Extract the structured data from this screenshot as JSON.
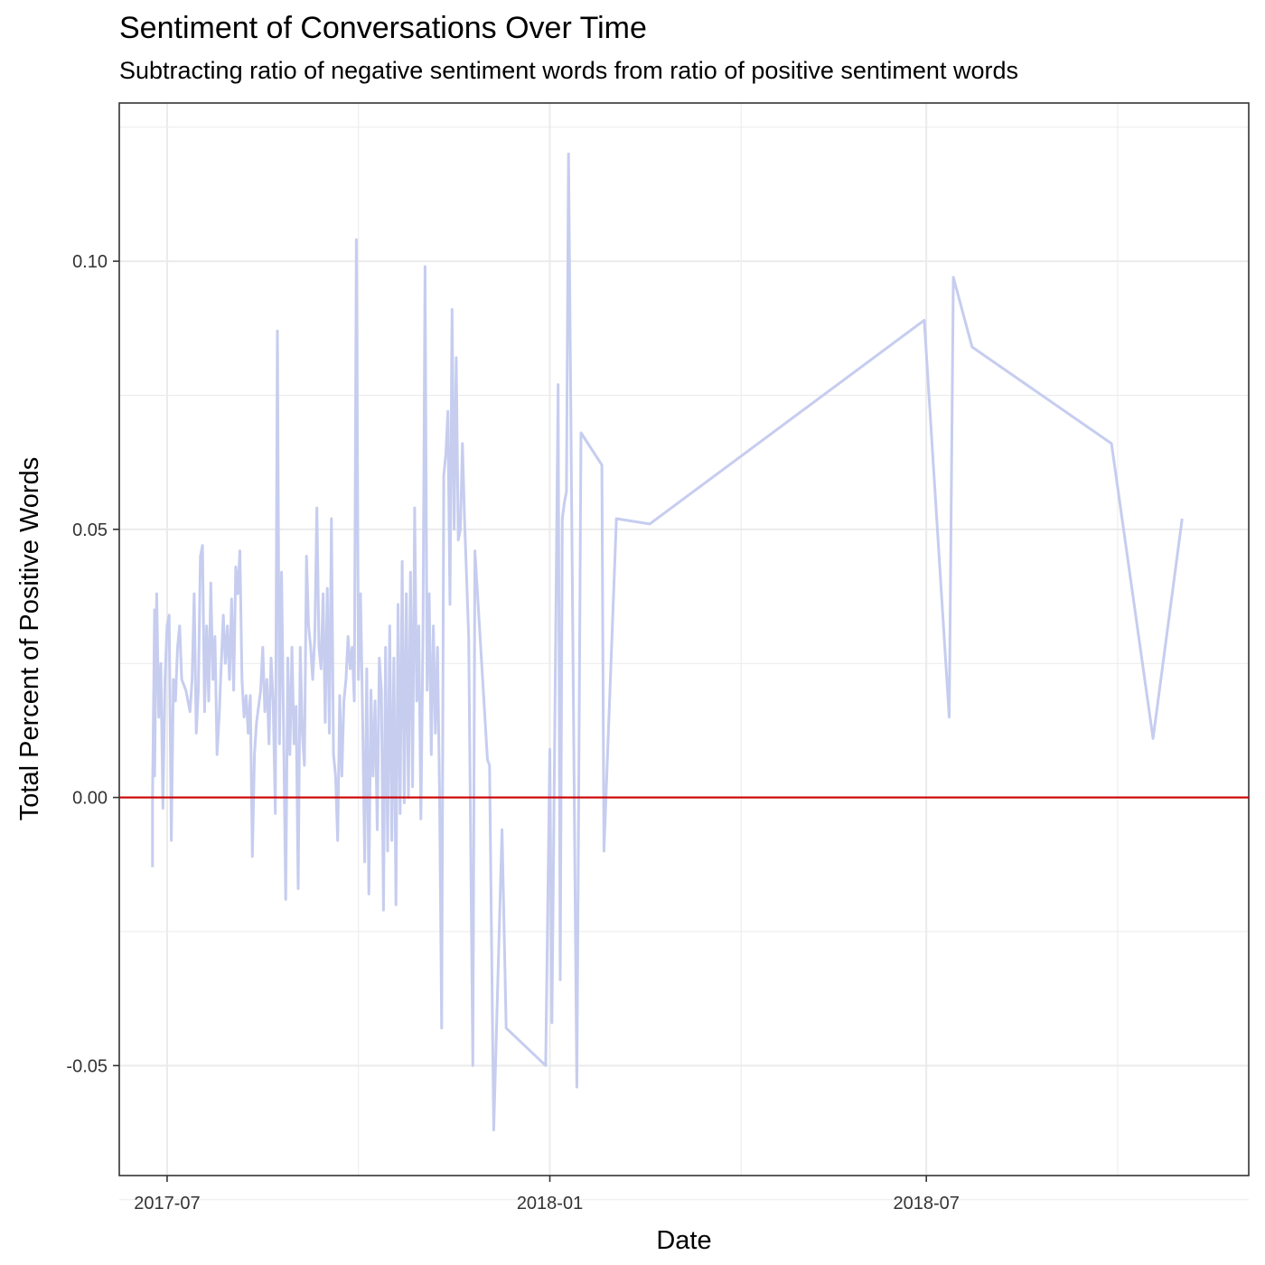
{
  "chart_data": {
    "type": "line",
    "title": "Sentiment of Conversations Over Time",
    "subtitle": "Subtracting ratio of negative sentiment words from ratio of positive sentiment words",
    "xlabel": "Date",
    "ylabel": "Total Percent of Positive Words",
    "x_ticks": [
      "2017-07",
      "2018-01",
      "2018-07"
    ],
    "y_ticks": [
      "-0.05",
      "0.00",
      "0.05",
      "0.10"
    ],
    "xlim": [
      "2017-06-08",
      "2018-12-03"
    ],
    "ylim": [
      -0.0705,
      0.1295
    ],
    "grid": true,
    "reference_line": {
      "y": 0,
      "color": "#cc0000"
    },
    "series": [
      {
        "color": "#c6cdef",
        "points": [
          [
            "2017-06-24",
            -0.013
          ],
          [
            "2017-06-24",
            0.0
          ],
          [
            "2017-06-25",
            0.035
          ],
          [
            "2017-06-25",
            0.004
          ],
          [
            "2017-06-26",
            0.038
          ],
          [
            "2017-06-27",
            0.015
          ],
          [
            "2017-06-28",
            0.025
          ],
          [
            "2017-06-29",
            -0.002
          ],
          [
            "2017-06-30",
            0.022
          ],
          [
            "2017-07-01",
            0.032
          ],
          [
            "2017-07-02",
            0.034
          ],
          [
            "2017-07-03",
            -0.008
          ],
          [
            "2017-07-04",
            0.022
          ],
          [
            "2017-07-05",
            0.018
          ],
          [
            "2017-07-06",
            0.028
          ],
          [
            "2017-07-07",
            0.032
          ],
          [
            "2017-07-08",
            0.022
          ],
          [
            "2017-07-10",
            0.02
          ],
          [
            "2017-07-12",
            0.016
          ],
          [
            "2017-07-13",
            0.022
          ],
          [
            "2017-07-14",
            0.038
          ],
          [
            "2017-07-15",
            0.012
          ],
          [
            "2017-07-16",
            0.02
          ],
          [
            "2017-07-17",
            0.045
          ],
          [
            "2017-07-18",
            0.047
          ],
          [
            "2017-07-19",
            0.016
          ],
          [
            "2017-07-20",
            0.032
          ],
          [
            "2017-07-21",
            0.018
          ],
          [
            "2017-07-22",
            0.04
          ],
          [
            "2017-07-23",
            0.022
          ],
          [
            "2017-07-24",
            0.03
          ],
          [
            "2017-07-25",
            0.008
          ],
          [
            "2017-07-26",
            0.015
          ],
          [
            "2017-07-28",
            0.034
          ],
          [
            "2017-07-29",
            0.025
          ],
          [
            "2017-07-30",
            0.032
          ],
          [
            "2017-07-31",
            0.022
          ],
          [
            "2017-08-01",
            0.037
          ],
          [
            "2017-08-02",
            0.02
          ],
          [
            "2017-08-03",
            0.043
          ],
          [
            "2017-08-04",
            0.038
          ],
          [
            "2017-08-05",
            0.046
          ],
          [
            "2017-08-06",
            0.022
          ],
          [
            "2017-08-07",
            0.015
          ],
          [
            "2017-08-08",
            0.019
          ],
          [
            "2017-08-09",
            0.012
          ],
          [
            "2017-08-10",
            0.019
          ],
          [
            "2017-08-11",
            -0.011
          ],
          [
            "2017-08-12",
            0.008
          ],
          [
            "2017-08-13",
            0.014
          ],
          [
            "2017-08-15",
            0.02
          ],
          [
            "2017-08-16",
            0.028
          ],
          [
            "2017-08-17",
            0.016
          ],
          [
            "2017-08-18",
            0.022
          ],
          [
            "2017-08-19",
            0.01
          ],
          [
            "2017-08-20",
            0.026
          ],
          [
            "2017-08-21",
            0.018
          ],
          [
            "2017-08-22",
            -0.003
          ],
          [
            "2017-08-23",
            0.087
          ],
          [
            "2017-08-24",
            0.01
          ],
          [
            "2017-08-25",
            0.042
          ],
          [
            "2017-08-26",
            0.012
          ],
          [
            "2017-08-27",
            -0.019
          ],
          [
            "2017-08-28",
            0.026
          ],
          [
            "2017-08-29",
            0.008
          ],
          [
            "2017-08-30",
            0.028
          ],
          [
            "2017-08-31",
            0.01
          ],
          [
            "2017-09-01",
            0.017
          ],
          [
            "2017-09-02",
            -0.017
          ],
          [
            "2017-09-03",
            0.028
          ],
          [
            "2017-09-04",
            0.012
          ],
          [
            "2017-09-05",
            0.006
          ],
          [
            "2017-09-06",
            0.045
          ],
          [
            "2017-09-07",
            0.032
          ],
          [
            "2017-09-08",
            0.028
          ],
          [
            "2017-09-09",
            0.022
          ],
          [
            "2017-09-10",
            0.03
          ],
          [
            "2017-09-11",
            0.054
          ],
          [
            "2017-09-12",
            0.028
          ],
          [
            "2017-09-13",
            0.024
          ],
          [
            "2017-09-14",
            0.038
          ],
          [
            "2017-09-15",
            0.014
          ],
          [
            "2017-09-16",
            0.039
          ],
          [
            "2017-09-17",
            0.012
          ],
          [
            "2017-09-18",
            0.052
          ],
          [
            "2017-09-19",
            0.008
          ],
          [
            "2017-09-20",
            0.004
          ],
          [
            "2017-09-21",
            -0.008
          ],
          [
            "2017-09-22",
            0.019
          ],
          [
            "2017-09-23",
            0.004
          ],
          [
            "2017-09-24",
            0.018
          ],
          [
            "2017-09-25",
            0.022
          ],
          [
            "2017-09-26",
            0.03
          ],
          [
            "2017-09-27",
            0.024
          ],
          [
            "2017-09-28",
            0.028
          ],
          [
            "2017-09-29",
            0.018
          ],
          [
            "2017-09-30",
            0.104
          ],
          [
            "2017-10-01",
            0.022
          ],
          [
            "2017-10-02",
            0.038
          ],
          [
            "2017-10-03",
            0.015
          ],
          [
            "2017-10-04",
            -0.012
          ],
          [
            "2017-10-05",
            0.024
          ],
          [
            "2017-10-06",
            -0.018
          ],
          [
            "2017-10-07",
            0.02
          ],
          [
            "2017-10-08",
            0.004
          ],
          [
            "2017-10-09",
            0.018
          ],
          [
            "2017-10-10",
            -0.006
          ],
          [
            "2017-10-11",
            0.026
          ],
          [
            "2017-10-12",
            0.02
          ],
          [
            "2017-10-13",
            -0.021
          ],
          [
            "2017-10-14",
            0.028
          ],
          [
            "2017-10-15",
            -0.01
          ],
          [
            "2017-10-16",
            0.032
          ],
          [
            "2017-10-17",
            -0.008
          ],
          [
            "2017-10-18",
            0.026
          ],
          [
            "2017-10-19",
            -0.02
          ],
          [
            "2017-10-20",
            0.036
          ],
          [
            "2017-10-21",
            -0.003
          ],
          [
            "2017-10-22",
            0.044
          ],
          [
            "2017-10-23",
            -0.001
          ],
          [
            "2017-10-24",
            0.038
          ],
          [
            "2017-10-25",
            0.0
          ],
          [
            "2017-10-26",
            0.042
          ],
          [
            "2017-10-27",
            0.002
          ],
          [
            "2017-10-28",
            0.054
          ],
          [
            "2017-10-29",
            0.018
          ],
          [
            "2017-10-30",
            0.032
          ],
          [
            "2017-10-31",
            -0.004
          ],
          [
            "2017-11-01",
            0.03
          ],
          [
            "2017-11-02",
            0.099
          ],
          [
            "2017-11-03",
            0.02
          ],
          [
            "2017-11-04",
            0.038
          ],
          [
            "2017-11-05",
            0.008
          ],
          [
            "2017-11-06",
            0.032
          ],
          [
            "2017-11-07",
            0.012
          ],
          [
            "2017-11-08",
            0.028
          ],
          [
            "2017-11-09",
            0.0
          ],
          [
            "2017-11-10",
            -0.043
          ],
          [
            "2017-11-11",
            0.06
          ],
          [
            "2017-11-12",
            0.064
          ],
          [
            "2017-11-13",
            0.072
          ],
          [
            "2017-11-14",
            0.036
          ],
          [
            "2017-11-15",
            0.091
          ],
          [
            "2017-11-16",
            0.05
          ],
          [
            "2017-11-17",
            0.082
          ],
          [
            "2017-11-18",
            0.048
          ],
          [
            "2017-11-19",
            0.05
          ],
          [
            "2017-11-20",
            0.066
          ],
          [
            "2017-11-21",
            0.052
          ],
          [
            "2017-11-23",
            0.03
          ],
          [
            "2017-11-25",
            -0.05
          ],
          [
            "2017-11-26",
            0.046
          ],
          [
            "2017-12-02",
            0.007
          ],
          [
            "2017-12-03",
            0.006
          ],
          [
            "2017-12-05",
            -0.062
          ],
          [
            "2017-12-09",
            -0.006
          ],
          [
            "2017-12-11",
            -0.043
          ],
          [
            "2017-12-30",
            -0.05
          ],
          [
            "2018-01-01",
            0.009
          ],
          [
            "2018-01-02",
            -0.042
          ],
          [
            "2018-01-05",
            0.077
          ],
          [
            "2018-01-06",
            -0.034
          ],
          [
            "2018-01-07",
            0.052
          ],
          [
            "2018-01-08",
            0.055
          ],
          [
            "2018-01-09",
            0.057
          ],
          [
            "2018-01-10",
            0.12
          ],
          [
            "2018-01-14",
            -0.054
          ],
          [
            "2018-01-16",
            0.068
          ],
          [
            "2018-01-26",
            0.062
          ],
          [
            "2018-01-27",
            -0.01
          ],
          [
            "2018-02-02",
            0.052
          ],
          [
            "2018-02-18",
            0.051
          ],
          [
            "2018-06-30",
            0.089
          ],
          [
            "2018-07-12",
            0.015
          ],
          [
            "2018-07-14",
            0.097
          ],
          [
            "2018-07-23",
            0.084
          ],
          [
            "2018-09-28",
            0.066
          ],
          [
            "2018-10-18",
            0.011
          ],
          [
            "2018-11-01",
            0.052
          ]
        ]
      }
    ]
  }
}
